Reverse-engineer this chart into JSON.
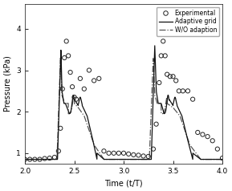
{
  "title": "",
  "xlabel": "Time (t/T)",
  "ylabel": "Pressure (kPa)",
  "xlim": [
    2,
    4
  ],
  "ylim": [
    0.75,
    4.6
  ],
  "xticks": [
    2,
    2.5,
    3,
    3.5,
    4
  ],
  "yticks": [
    1,
    2,
    3,
    4
  ],
  "legend_labels": [
    "Experimental",
    "Adaptive grid",
    "W/O adaption"
  ],
  "bg_color": "#ffffff",
  "line_color": "#000000",
  "exp_x": [
    2.0,
    2.05,
    2.1,
    2.15,
    2.2,
    2.25,
    2.3,
    2.34,
    2.36,
    2.38,
    2.4,
    2.42,
    2.44,
    2.46,
    2.48,
    2.5,
    2.52,
    2.56,
    2.6,
    2.65,
    2.7,
    2.75,
    2.8,
    2.85,
    2.9,
    2.95,
    3.0,
    3.05,
    3.1,
    3.15,
    3.2,
    3.25,
    3.3,
    3.33,
    3.36,
    3.38,
    3.4,
    3.42,
    3.44,
    3.47,
    3.5,
    3.53,
    3.56,
    3.6,
    3.65,
    3.7,
    3.75,
    3.8,
    3.85,
    3.9,
    3.95,
    4.0
  ],
  "exp_y": [
    0.85,
    0.85,
    0.85,
    0.85,
    0.87,
    0.88,
    0.9,
    1.05,
    1.6,
    2.55,
    3.3,
    3.7,
    3.35,
    2.95,
    2.6,
    2.35,
    2.3,
    2.8,
    2.55,
    3.0,
    2.75,
    2.8,
    1.05,
    1.0,
    1.0,
    1.0,
    1.0,
    0.98,
    0.96,
    0.95,
    0.93,
    0.92,
    1.1,
    1.7,
    2.7,
    3.35,
    3.7,
    3.35,
    2.9,
    2.85,
    2.85,
    2.75,
    2.5,
    2.5,
    2.5,
    2.3,
    1.5,
    1.45,
    1.4,
    1.3,
    1.1,
    0.88
  ]
}
